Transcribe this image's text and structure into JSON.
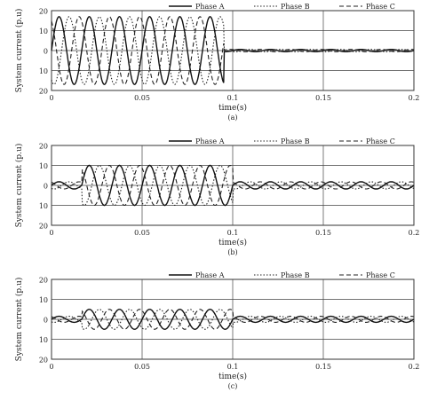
{
  "chart_data": [
    {
      "type": "line",
      "panel_label": "(a)",
      "xlabel": "time(s)",
      "ylabel": "System current (p.u)",
      "xlim": [
        0,
        0.2
      ],
      "ylim": [
        -20,
        20
      ],
      "x_ticks": [
        "0",
        "0.05",
        "0.1",
        "0.15",
        "0.2"
      ],
      "y_ticks": [
        "20",
        "10",
        "0",
        "10",
        "20"
      ],
      "grid": true,
      "legend": "top-right",
      "fault_start": 0.0,
      "fault_end": 0.095,
      "fault_amplitude": 17,
      "post_amplitude": 0.6,
      "frequency": 60,
      "series": [
        {
          "name": "Phase A",
          "phase_deg": 0,
          "dash": "solid",
          "color": "#111111"
        },
        {
          "name": "Phase B",
          "phase_deg": -120,
          "dash": "dotted",
          "color": "#222222"
        },
        {
          "name": "Phase C",
          "phase_deg": 120,
          "dash": "dashed",
          "color": "#222222"
        }
      ]
    },
    {
      "type": "line",
      "panel_label": "(b)",
      "xlabel": "time(s)",
      "ylabel": "System current (p.u)",
      "xlim": [
        0,
        0.2
      ],
      "ylim": [
        -20,
        20
      ],
      "x_ticks": [
        "0",
        "0.05",
        "0.1",
        "0.15",
        "0.2"
      ],
      "y_ticks": [
        "20",
        "10",
        "0",
        "10",
        "20"
      ],
      "grid": true,
      "legend": "top-right",
      "fault_start": 0.017,
      "fault_end": 0.1,
      "fault_amplitude": 10,
      "post_amplitude": 1.8,
      "frequency": 60,
      "series": [
        {
          "name": "Phase A",
          "phase_deg": 0,
          "dash": "solid",
          "color": "#111111"
        },
        {
          "name": "Phase B",
          "phase_deg": -120,
          "dash": "dotted",
          "color": "#222222"
        },
        {
          "name": "Phase C",
          "phase_deg": 120,
          "dash": "dashed",
          "color": "#222222"
        }
      ]
    },
    {
      "type": "line",
      "panel_label": "(c)",
      "xlabel": "time(s)",
      "ylabel": "System current (p.u)",
      "xlim": [
        0,
        0.2
      ],
      "ylim": [
        -20,
        20
      ],
      "x_ticks": [
        "0",
        "0.05",
        "0.1",
        "0.15",
        "0.2"
      ],
      "y_ticks": [
        "20",
        "10",
        "0",
        "10",
        "20"
      ],
      "grid": true,
      "legend": "top-right",
      "fault_start": 0.017,
      "fault_end": 0.1,
      "fault_amplitude": 5,
      "post_amplitude": 1.5,
      "frequency": 60,
      "series": [
        {
          "name": "Phase A",
          "phase_deg": 0,
          "dash": "solid",
          "color": "#111111"
        },
        {
          "name": "Phase B",
          "phase_deg": -120,
          "dash": "dotted",
          "color": "#222222"
        },
        {
          "name": "Phase C",
          "phase_deg": 120,
          "dash": "dashed",
          "color": "#222222"
        }
      ]
    }
  ]
}
